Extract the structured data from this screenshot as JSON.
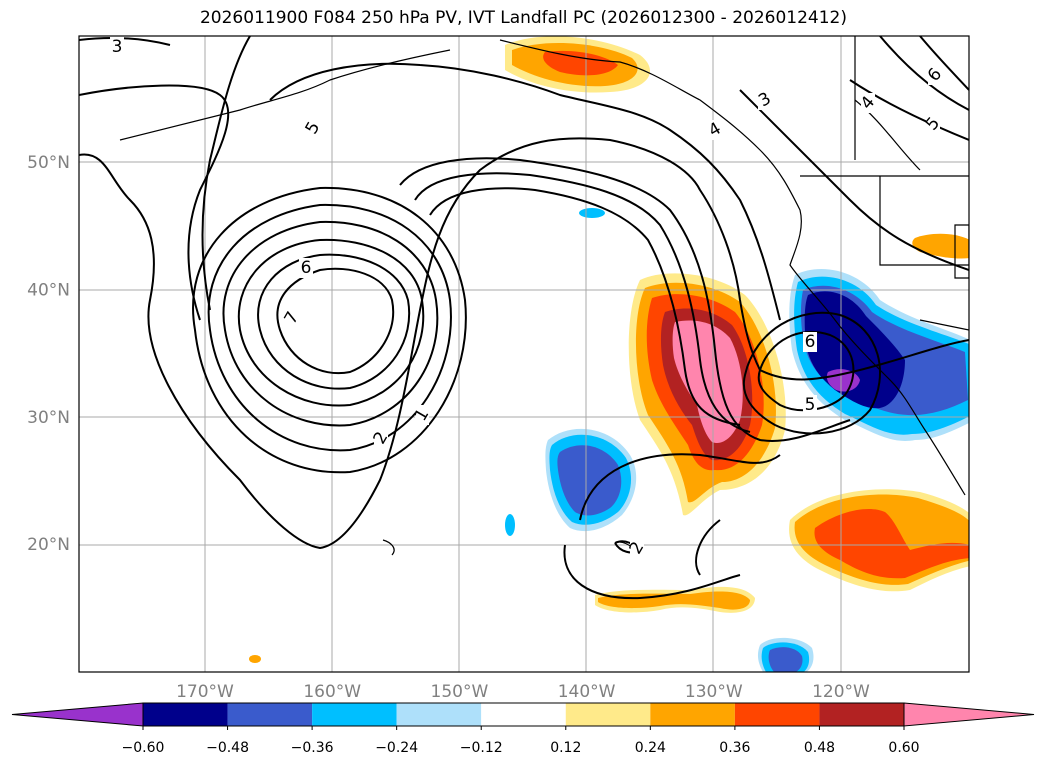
{
  "title": "2026011900 F084 250 hPa PV, IVT Landfall PC (2026012300 - 2026012412)",
  "map": {
    "lon_ticks": [
      "170°W",
      "160°W",
      "150°W",
      "140°W",
      "130°W",
      "120°W"
    ],
    "lat_ticks": [
      "50°N",
      "40°N",
      "30°N",
      "20°N"
    ],
    "lon_values": [
      -170,
      -160,
      -150,
      -140,
      -130,
      -120
    ],
    "lat_values": [
      50,
      40,
      30,
      20
    ],
    "grid": true,
    "contour_labels": [
      "3",
      "5",
      "6",
      "7",
      "1",
      "2",
      "6",
      "5",
      "3",
      "4",
      "4",
      "5",
      "6",
      "2"
    ]
  },
  "colorbar": {
    "tick_labels": [
      "−0.60",
      "−0.48",
      "−0.36",
      "−0.24",
      "−0.12",
      "0.12",
      "0.24",
      "0.36",
      "0.48",
      "0.60"
    ],
    "colors": [
      "#9932cc",
      "#00008b",
      "#3a5bcc",
      "#00bfff",
      "#aee0fa",
      "#ffffff",
      "#ffea8a",
      "#ffa500",
      "#ff4500",
      "#b22222",
      "#ff85ad"
    ],
    "extend": "both"
  }
}
